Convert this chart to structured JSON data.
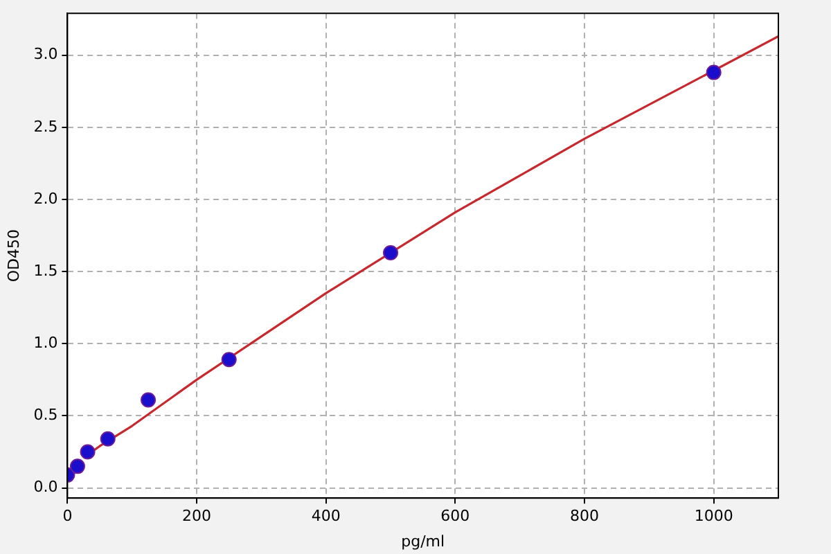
{
  "chart_data": {
    "type": "scatter",
    "xlabel": "pg/ml",
    "ylabel": "OD450",
    "xlim": [
      0,
      1100
    ],
    "ylim": [
      -0.07,
      3.29
    ],
    "xticks": [
      0,
      200,
      400,
      600,
      800,
      1000
    ],
    "yticks": [
      {
        "value": 0,
        "label": "0.0"
      },
      {
        "value": 0.5,
        "label": "0.5"
      },
      {
        "value": 1,
        "label": "1.0"
      },
      {
        "value": 1.5,
        "label": "1.5"
      },
      {
        "value": 2,
        "label": "2.0"
      },
      {
        "value": 2.5,
        "label": "2.5"
      },
      {
        "value": 3,
        "label": "3.0"
      }
    ],
    "grid": true,
    "legend": false,
    "marker": "circle",
    "series": [
      {
        "type": "scatter",
        "color": "#1a0dcc",
        "x": [
          0,
          15.6,
          31.25,
          62.5,
          125,
          250,
          500,
          1000
        ],
        "values": [
          0.09,
          0.15,
          0.25,
          0.34,
          0.61,
          0.89,
          1.63,
          2.88
        ]
      },
      {
        "type": "line",
        "color": "#c8282d",
        "marker": "none",
        "line_style": "solid",
        "x": [
          25,
          50,
          100,
          200,
          300,
          400,
          600,
          800,
          1100
        ],
        "values": [
          0.21,
          0.29,
          0.43,
          0.75,
          1.05,
          1.35,
          1.91,
          2.42,
          3.13
        ]
      }
    ]
  }
}
